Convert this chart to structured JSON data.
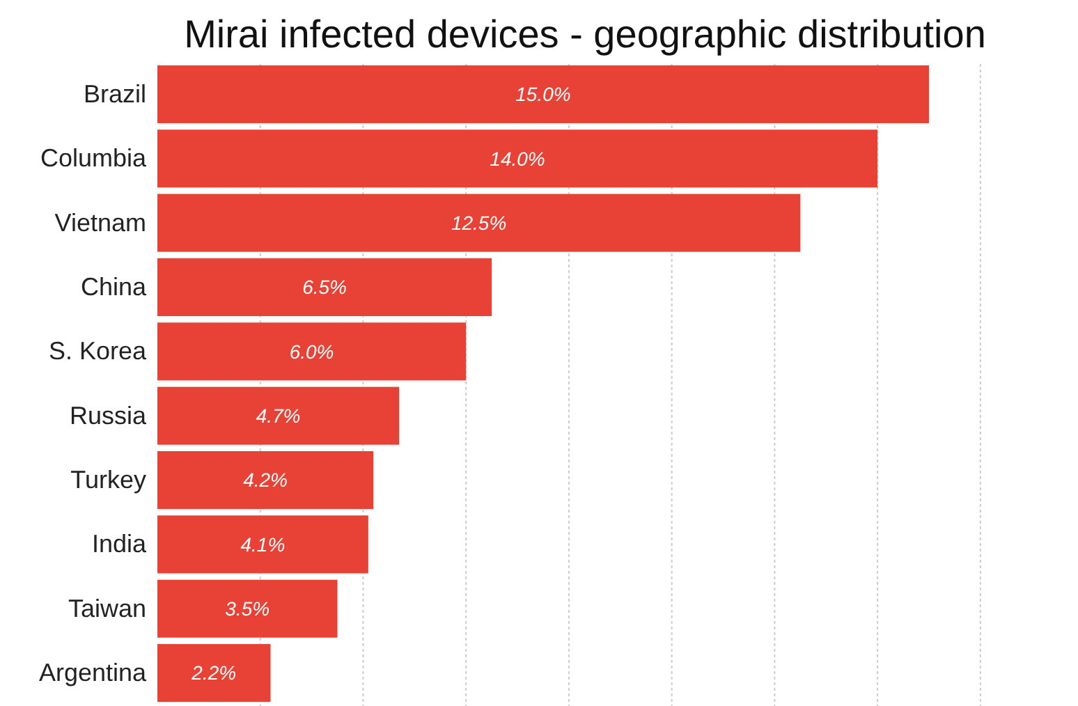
{
  "chart_data": {
    "type": "bar",
    "orientation": "horizontal",
    "title": "Mirai infected devices - geographic distribution",
    "categories": [
      "Brazil",
      "Columbia",
      "Vietnam",
      "China",
      "S. Korea",
      "Russia",
      "Turkey",
      "India",
      "Taiwan",
      "Argentina"
    ],
    "values": [
      15.0,
      14.0,
      12.5,
      6.5,
      6.0,
      4.7,
      4.2,
      4.1,
      3.5,
      2.2
    ],
    "value_labels": [
      "15.0%",
      "14.0%",
      "12.5%",
      "6.5%",
      "6.0%",
      "4.7%",
      "4.2%",
      "4.1%",
      "3.5%",
      "2.2%"
    ],
    "color": "#e84236",
    "xticks": [
      {
        "value": 2,
        "label": null
      },
      {
        "value": 4,
        "label": null
      },
      {
        "value": 6,
        "label": null
      },
      {
        "value": 8,
        "label": null
      },
      {
        "value": 10,
        "label": null
      },
      {
        "value": 12,
        "label": null
      },
      {
        "value": 14,
        "label": null
      },
      {
        "value": 16,
        "label": null
      }
    ],
    "grid": "x",
    "tick_labels": "y"
  }
}
